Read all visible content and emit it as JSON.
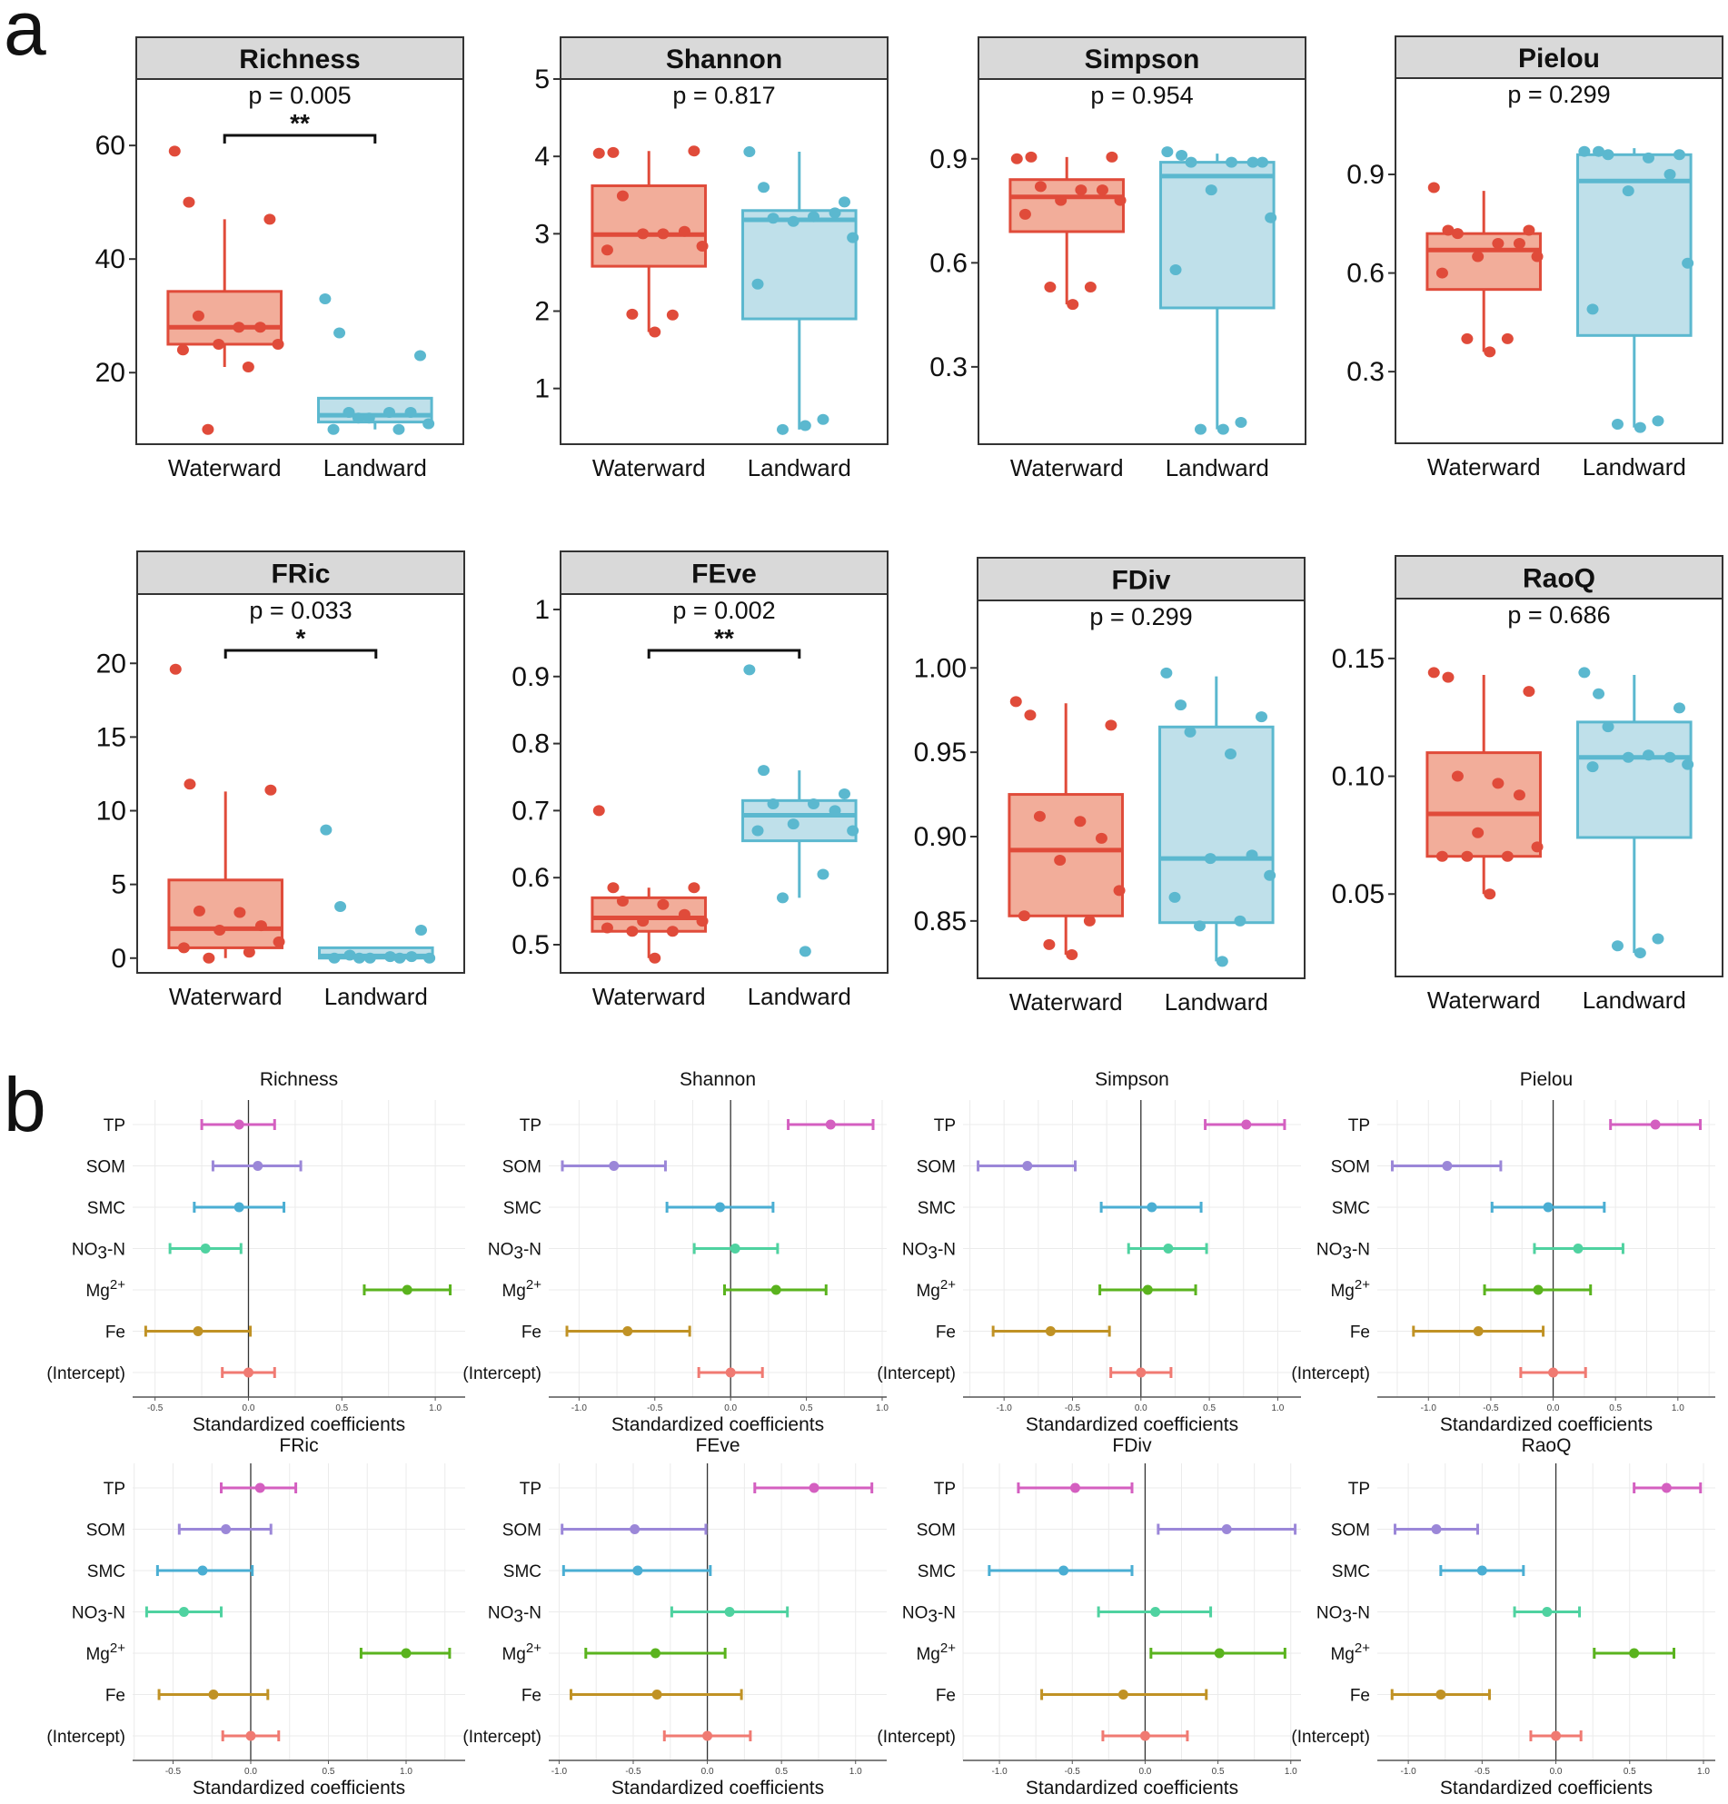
{
  "figure": {
    "panel_a_letter": "a",
    "panel_b_letter": "b"
  },
  "colors": {
    "waterward_line": "#e04b3a",
    "waterward_fill": "#f2ad9a",
    "landward_line": "#5bb8cf",
    "landward_fill": "#bfe0ea",
    "strip_fill": "#d9d9d9",
    "TP": "#d45fc0",
    "SOM": "#9b87d8",
    "SMC": "#4aaed3",
    "NO3-N": "#4fd2a0",
    "Mg2+": "#5ab31e",
    "Fe": "#c09225",
    "(Intercept)": "#f07a72"
  },
  "chart_data": [
    {
      "type": "box",
      "panel": "a",
      "title": "Richness",
      "categories": [
        "Waterward",
        "Landward"
      ],
      "p_label": "p = 0.005",
      "significance": "**",
      "yticks": [
        20,
        40,
        60
      ],
      "ylim": [
        7.4,
        71.7
      ],
      "series": [
        {
          "name": "Waterward",
          "box": {
            "lower_whisker": 21,
            "q1": 25,
            "median": 28,
            "q3": 34.3,
            "upper_whisker": 47
          },
          "points": [
            59,
            50,
            47,
            30,
            28,
            28,
            25,
            25,
            24,
            21,
            10
          ]
        },
        {
          "name": "Landward",
          "box": {
            "lower_whisker": 10,
            "q1": 11.3,
            "median": 12.5,
            "q3": 15.5,
            "upper_whisker": 15.5
          },
          "points": [
            33,
            27,
            23,
            13,
            13,
            13,
            12,
            11,
            10,
            10,
            12
          ]
        }
      ]
    },
    {
      "type": "box",
      "panel": "a",
      "title": "Shannon",
      "categories": [
        "Waterward",
        "Landward"
      ],
      "p_label": "p = 0.817",
      "significance": "",
      "yticks": [
        1,
        2,
        3,
        4,
        5
      ],
      "ylim": [
        0.28,
        5.0
      ],
      "series": [
        {
          "name": "Waterward",
          "box": {
            "lower_whisker": 1.73,
            "q1": 2.58,
            "median": 2.99,
            "q3": 3.62,
            "upper_whisker": 4.07
          },
          "points": [
            4.04,
            4.05,
            4.07,
            3.49,
            3.0,
            3.03,
            3.0,
            2.84,
            2.79,
            1.95,
            1.96,
            1.73
          ]
        },
        {
          "name": "Landward",
          "box": {
            "lower_whisker": 0.47,
            "q1": 1.9,
            "median": 3.18,
            "q3": 3.3,
            "upper_whisker": 4.06
          },
          "points": [
            4.06,
            3.6,
            3.41,
            3.2,
            3.22,
            3.27,
            3.16,
            2.95,
            2.35,
            0.6,
            0.47,
            0.52
          ]
        }
      ]
    },
    {
      "type": "box",
      "panel": "a",
      "title": "Simpson",
      "categories": [
        "Waterward",
        "Landward"
      ],
      "p_label": "p = 0.954",
      "significance": "",
      "yticks": [
        0.3,
        0.6,
        0.9
      ],
      "ylim": [
        0.077,
        1.13
      ],
      "series": [
        {
          "name": "Waterward",
          "box": {
            "lower_whisker": 0.48,
            "q1": 0.69,
            "median": 0.79,
            "q3": 0.84,
            "upper_whisker": 0.905
          },
          "points": [
            0.9,
            0.905,
            0.905,
            0.82,
            0.81,
            0.81,
            0.78,
            0.78,
            0.74,
            0.53,
            0.53,
            0.48
          ]
        },
        {
          "name": "Landward",
          "box": {
            "lower_whisker": 0.12,
            "q1": 0.47,
            "median": 0.85,
            "q3": 0.89,
            "upper_whisker": 0.915
          },
          "points": [
            0.92,
            0.91,
            0.89,
            0.89,
            0.89,
            0.89,
            0.81,
            0.73,
            0.58,
            0.14,
            0.12,
            0.12
          ]
        }
      ]
    },
    {
      "type": "box",
      "panel": "a",
      "title": "Pielou",
      "categories": [
        "Waterward",
        "Landward"
      ],
      "p_label": "p = 0.299",
      "significance": "",
      "yticks": [
        0.3,
        0.6,
        0.9
      ],
      "ylim": [
        0.082,
        1.193
      ],
      "series": [
        {
          "name": "Waterward",
          "box": {
            "lower_whisker": 0.36,
            "q1": 0.55,
            "median": 0.67,
            "q3": 0.72,
            "upper_whisker": 0.85
          },
          "points": [
            0.86,
            0.73,
            0.73,
            0.72,
            0.69,
            0.69,
            0.65,
            0.65,
            0.6,
            0.4,
            0.4,
            0.36
          ]
        },
        {
          "name": "Landward",
          "box": {
            "lower_whisker": 0.13,
            "q1": 0.41,
            "median": 0.88,
            "q3": 0.96,
            "upper_whisker": 0.98
          },
          "points": [
            0.97,
            0.97,
            0.96,
            0.96,
            0.95,
            0.9,
            0.85,
            0.63,
            0.49,
            0.15,
            0.14,
            0.13
          ]
        }
      ]
    },
    {
      "type": "box",
      "panel": "a",
      "title": "FRic",
      "categories": [
        "Waterward",
        "Landward"
      ],
      "p_label": "p = 0.033",
      "significance": "*",
      "yticks": [
        0,
        5,
        10,
        15,
        20
      ],
      "ylim": [
        -1.0,
        24.7
      ],
      "series": [
        {
          "name": "Waterward",
          "box": {
            "lower_whisker": 0,
            "q1": 0.7,
            "median": 2.0,
            "q3": 5.3,
            "upper_whisker": 11.3
          },
          "points": [
            19.6,
            11.8,
            11.4,
            3.2,
            3.1,
            2.2,
            1.9,
            1.1,
            0.7,
            0.4,
            0.0
          ]
        },
        {
          "name": "Landward",
          "box": {
            "lower_whisker": 0,
            "q1": 0.0,
            "median": 0.15,
            "q3": 0.7,
            "upper_whisker": 0.7
          },
          "points": [
            8.7,
            3.5,
            1.9,
            0.2,
            0.1,
            0.1,
            0.0,
            0.0,
            0.0,
            0.0,
            0.0
          ]
        }
      ]
    },
    {
      "type": "box",
      "panel": "a",
      "title": "FEve",
      "categories": [
        "Waterward",
        "Landward"
      ],
      "p_label": "p = 0.002",
      "significance": "**",
      "yticks": [
        0.5,
        0.6,
        0.7,
        0.8,
        0.9,
        1.0
      ],
      "ylim": [
        0.458,
        1.023
      ],
      "series": [
        {
          "name": "Waterward",
          "box": {
            "lower_whisker": 0.48,
            "q1": 0.52,
            "median": 0.54,
            "q3": 0.57,
            "upper_whisker": 0.585
          },
          "points": [
            0.7,
            0.585,
            0.585,
            0.565,
            0.56,
            0.545,
            0.535,
            0.535,
            0.525,
            0.52,
            0.52,
            0.48
          ]
        },
        {
          "name": "Landward",
          "box": {
            "lower_whisker": 0.57,
            "q1": 0.655,
            "median": 0.693,
            "q3": 0.715,
            "upper_whisker": 0.76
          },
          "points": [
            0.91,
            0.76,
            0.725,
            0.71,
            0.71,
            0.7,
            0.68,
            0.67,
            0.67,
            0.605,
            0.57,
            0.49
          ]
        }
      ]
    },
    {
      "type": "box",
      "panel": "a",
      "title": "FDiv",
      "categories": [
        "Waterward",
        "Landward"
      ],
      "p_label": "p = 0.299",
      "significance": "",
      "yticks": [
        0.85,
        0.9,
        0.95,
        1.0
      ],
      "ytick_labels": [
        "0.85",
        "0.90",
        "0.95",
        "1.00"
      ],
      "ylim": [
        0.816,
        1.04
      ],
      "series": [
        {
          "name": "Waterward",
          "box": {
            "lower_whisker": 0.83,
            "q1": 0.853,
            "median": 0.892,
            "q3": 0.925,
            "upper_whisker": 0.979
          },
          "points": [
            0.98,
            0.972,
            0.966,
            0.912,
            0.909,
            0.899,
            0.886,
            0.868,
            0.853,
            0.85,
            0.836,
            0.83
          ]
        },
        {
          "name": "Landward",
          "box": {
            "lower_whisker": 0.826,
            "q1": 0.849,
            "median": 0.887,
            "q3": 0.965,
            "upper_whisker": 0.995
          },
          "points": [
            0.997,
            0.978,
            0.971,
            0.962,
            0.949,
            0.889,
            0.887,
            0.877,
            0.864,
            0.85,
            0.847,
            0.826
          ]
        }
      ]
    },
    {
      "type": "box",
      "panel": "a",
      "title": "RaoQ",
      "categories": [
        "Waterward",
        "Landward"
      ],
      "p_label": "p = 0.686",
      "significance": "",
      "yticks": [
        0.05,
        0.1,
        0.15
      ],
      "ytick_labels": [
        "0.05",
        "0.10",
        "0.15"
      ],
      "ylim": [
        0.015,
        0.1754
      ],
      "series": [
        {
          "name": "Waterward",
          "box": {
            "lower_whisker": 0.05,
            "q1": 0.066,
            "median": 0.084,
            "q3": 0.11,
            "upper_whisker": 0.143
          },
          "points": [
            0.144,
            0.142,
            0.136,
            0.1,
            0.097,
            0.092,
            0.076,
            0.07,
            0.066,
            0.066,
            0.066,
            0.05
          ]
        },
        {
          "name": "Landward",
          "box": {
            "lower_whisker": 0.025,
            "q1": 0.074,
            "median": 0.108,
            "q3": 0.123,
            "upper_whisker": 0.143
          },
          "points": [
            0.144,
            0.135,
            0.129,
            0.121,
            0.109,
            0.108,
            0.108,
            0.105,
            0.104,
            0.031,
            0.028,
            0.025
          ]
        }
      ]
    },
    {
      "type": "errorbar",
      "panel": "b",
      "title": "Richness",
      "xlabel": "Standardized coefficients",
      "xticks": [
        -0.5,
        0.0,
        0.5,
        1.0
      ],
      "xlim": [
        -0.62,
        1.16
      ],
      "terms": [
        "TP",
        "SOM",
        "SMC",
        "NO3-N",
        "Mg2+",
        "Fe",
        "(Intercept)"
      ],
      "estimates": [
        -0.05,
        0.05,
        -0.05,
        -0.23,
        0.85,
        -0.27,
        0.0
      ],
      "lower": [
        -0.25,
        -0.19,
        -0.29,
        -0.42,
        0.62,
        -0.55,
        -0.14
      ],
      "upper": [
        0.14,
        0.28,
        0.19,
        -0.04,
        1.08,
        0.01,
        0.14
      ]
    },
    {
      "type": "errorbar",
      "panel": "b",
      "title": "Shannon",
      "xlabel": "Standardized coefficients",
      "xticks": [
        -1.0,
        -0.5,
        0.0,
        0.5,
        1.0
      ],
      "xlim": [
        -1.2,
        1.03
      ],
      "terms": [
        "TP",
        "SOM",
        "SMC",
        "NO3-N",
        "Mg2+",
        "Fe",
        "(Intercept)"
      ],
      "estimates": [
        0.66,
        -0.77,
        -0.07,
        0.03,
        0.3,
        -0.68,
        0.0
      ],
      "lower": [
        0.38,
        -1.11,
        -0.42,
        -0.24,
        -0.04,
        -1.08,
        -0.21
      ],
      "upper": [
        0.94,
        -0.43,
        0.28,
        0.31,
        0.63,
        -0.27,
        0.21
      ]
    },
    {
      "type": "errorbar",
      "panel": "b",
      "title": "Simpson",
      "xlabel": "Standardized coefficients",
      "xticks": [
        -1.0,
        -0.5,
        0.0,
        0.5,
        1.0
      ],
      "xlim": [
        -1.3,
        1.17
      ],
      "terms": [
        "TP",
        "SOM",
        "SMC",
        "NO3-N",
        "Mg2+",
        "Fe",
        "(Intercept)"
      ],
      "estimates": [
        0.77,
        -0.83,
        0.08,
        0.2,
        0.05,
        -0.66,
        0.0
      ],
      "lower": [
        0.47,
        -1.19,
        -0.29,
        -0.09,
        -0.3,
        -1.08,
        -0.22
      ],
      "upper": [
        1.05,
        -0.48,
        0.44,
        0.48,
        0.4,
        -0.23,
        0.22
      ]
    },
    {
      "type": "errorbar",
      "panel": "b",
      "title": "Pielou",
      "xlabel": "Standardized coefficients",
      "xticks": [
        -1.0,
        -0.5,
        0.0,
        0.5,
        1.0
      ],
      "xlim": [
        -1.41,
        1.3
      ],
      "terms": [
        "TP",
        "SOM",
        "SMC",
        "NO3-N",
        "Mg2+",
        "Fe",
        "(Intercept)"
      ],
      "estimates": [
        0.82,
        -0.85,
        -0.04,
        0.2,
        -0.12,
        -0.6,
        0.0
      ],
      "lower": [
        0.46,
        -1.29,
        -0.49,
        -0.15,
        -0.55,
        -1.12,
        -0.26
      ],
      "upper": [
        1.18,
        -0.42,
        0.41,
        0.56,
        0.3,
        -0.08,
        0.26
      ]
    },
    {
      "type": "errorbar",
      "panel": "b",
      "title": "FRic",
      "xlabel": "Standardized coefficients",
      "xticks": [
        -0.5,
        0.0,
        0.5,
        1.0
      ],
      "xlim": [
        -0.76,
        1.38
      ],
      "terms": [
        "TP",
        "SOM",
        "SMC",
        "NO3-N",
        "Mg2+",
        "Fe",
        "(Intercept)"
      ],
      "estimates": [
        0.06,
        -0.16,
        -0.31,
        -0.43,
        1.0,
        -0.24,
        0.0
      ],
      "lower": [
        -0.19,
        -0.46,
        -0.6,
        -0.67,
        0.71,
        -0.59,
        -0.18
      ],
      "upper": [
        0.29,
        0.13,
        0.01,
        -0.19,
        1.28,
        0.11,
        0.18
      ]
    },
    {
      "type": "errorbar",
      "panel": "b",
      "title": "FEve",
      "xlabel": "Standardized coefficients",
      "xticks": [
        -1.0,
        -0.5,
        0.0,
        0.5,
        1.0
      ],
      "xlim": [
        -1.07,
        1.21
      ],
      "terms": [
        "TP",
        "SOM",
        "SMC",
        "NO3-N",
        "Mg2+",
        "Fe",
        "(Intercept)"
      ],
      "estimates": [
        0.72,
        -0.49,
        -0.47,
        0.15,
        -0.35,
        -0.34,
        0.0
      ],
      "lower": [
        0.32,
        -0.98,
        -0.97,
        -0.24,
        -0.82,
        -0.92,
        -0.29
      ],
      "upper": [
        1.11,
        -0.01,
        0.02,
        0.54,
        0.12,
        0.23,
        0.29
      ]
    },
    {
      "type": "errorbar",
      "panel": "b",
      "title": "FDiv",
      "xlabel": "Standardized coefficients",
      "xticks": [
        -1.0,
        -0.5,
        0.0,
        0.5,
        1.0
      ],
      "xlim": [
        -1.25,
        1.07
      ],
      "terms": [
        "TP",
        "SOM",
        "SMC",
        "NO3-N",
        "Mg2+",
        "Fe",
        "(Intercept)"
      ],
      "estimates": [
        -0.48,
        0.56,
        -0.56,
        0.07,
        0.51,
        -0.15,
        0.0
      ],
      "lower": [
        -0.87,
        0.09,
        -1.07,
        -0.32,
        0.04,
        -0.71,
        -0.29
      ],
      "upper": [
        -0.09,
        1.03,
        -0.09,
        0.45,
        0.96,
        0.42,
        0.29
      ]
    },
    {
      "type": "errorbar",
      "panel": "b",
      "title": "RaoQ",
      "xlabel": "Standardized coefficients",
      "xticks": [
        -1.0,
        -0.5,
        0.0,
        0.5,
        1.0
      ],
      "xlim": [
        -1.21,
        1.08
      ],
      "terms": [
        "TP",
        "SOM",
        "SMC",
        "NO3-N",
        "Mg2+",
        "Fe",
        "(Intercept)"
      ],
      "estimates": [
        0.75,
        -0.81,
        -0.5,
        -0.06,
        0.53,
        -0.78,
        0.0
      ],
      "lower": [
        0.53,
        -1.09,
        -0.78,
        -0.28,
        0.26,
        -1.11,
        -0.17
      ],
      "upper": [
        0.98,
        -0.53,
        -0.22,
        0.16,
        0.8,
        -0.45,
        0.17
      ]
    }
  ]
}
